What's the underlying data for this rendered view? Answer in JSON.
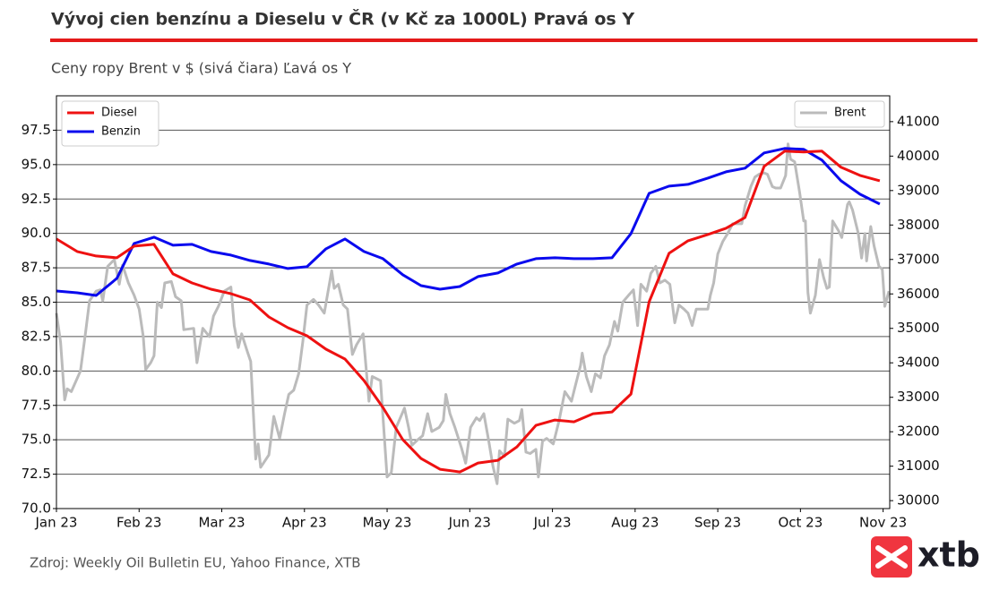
{
  "chart_data": {
    "type": "line",
    "title": "Vývoj cien benzínu a Dieselu v ČR (v Kč za 1000L) Pravá os Y",
    "subtitle": "Ceny ropy Brent v $ (sivá čiara) Ľavá os Y",
    "source": "Zdroj: Weekly Oil Bulletin EU, Yahoo Finance, XTB",
    "logo": "xtb",
    "xlim": [
      0,
      10.08
    ],
    "xticks": [
      {
        "value": 0,
        "label": "Jan 23"
      },
      {
        "value": 1,
        "label": "Feb 23"
      },
      {
        "value": 2,
        "label": "Mar 23"
      },
      {
        "value": 3,
        "label": "Apr 23"
      },
      {
        "value": 4,
        "label": "May 23"
      },
      {
        "value": 5,
        "label": "Jun 23"
      },
      {
        "value": 6,
        "label": "Jul 23"
      },
      {
        "value": 7,
        "label": "Aug 23"
      },
      {
        "value": 8,
        "label": "Sep 23"
      },
      {
        "value": 9,
        "label": "Oct 23"
      },
      {
        "value": 10,
        "label": "Nov 23"
      }
    ],
    "ylim": [
      70,
      100
    ],
    "yticks": [
      {
        "value": 70,
        "label": "70.0"
      },
      72.5,
      {
        "value": 75,
        "label": "75.0"
      },
      77.5,
      {
        "value": 80,
        "label": "80.0"
      },
      82.5,
      {
        "value": 85,
        "label": "85.0"
      },
      87.5,
      {
        "value": 90,
        "label": "90.0"
      },
      92.5,
      {
        "value": 95,
        "label": "95.0"
      },
      97.5
    ],
    "y2lim": [
      29770,
      41750
    ],
    "y2ticks": [
      30000,
      31000,
      32000,
      33000,
      34000,
      35000,
      36000,
      37000,
      38000,
      39000,
      40000,
      41000
    ],
    "grid": true,
    "legend": "upper left",
    "legend2": "upper right",
    "series": [
      {
        "name": "Diesel",
        "color": "#ee1111",
        "axis": "y2",
        "x": [
          0,
          0.25,
          0.48,
          0.73,
          0.94,
          1.18,
          1.41,
          1.64,
          1.87,
          2.11,
          2.34,
          2.57,
          2.8,
          3.03,
          3.26,
          3.49,
          3.72,
          3.95,
          4.19,
          4.41,
          4.64,
          4.88,
          5.1,
          5.34,
          5.57,
          5.8,
          6.03,
          6.26,
          6.49,
          6.72,
          6.95,
          7.17,
          7.41,
          7.64,
          7.88,
          8.1,
          8.33,
          8.56,
          8.81,
          9.04,
          9.26,
          9.49,
          9.72,
          9.96
        ],
        "values": [
          37594,
          37230,
          37100,
          37048,
          37386,
          37438,
          36580,
          36320,
          36138,
          36008,
          35826,
          35332,
          35020,
          34786,
          34395,
          34109,
          33485,
          32705,
          31768,
          31222,
          30910,
          30832,
          31092,
          31170,
          31560,
          32185,
          32341,
          32289,
          32523,
          32575,
          33095,
          35774,
          37178,
          37542,
          37724,
          37906,
          38218,
          39701,
          40143,
          40117,
          40143,
          39675,
          39441,
          39285
        ]
      },
      {
        "name": "Benzin",
        "color": "#0a0aee",
        "axis": "y2",
        "x": [
          0,
          0.25,
          0.48,
          0.73,
          0.94,
          1.18,
          1.41,
          1.64,
          1.87,
          2.11,
          2.34,
          2.57,
          2.8,
          3.03,
          3.26,
          3.49,
          3.72,
          3.95,
          4.19,
          4.41,
          4.64,
          4.88,
          5.1,
          5.34,
          5.57,
          5.8,
          6.03,
          6.26,
          6.49,
          6.72,
          6.95,
          7.17,
          7.41,
          7.64,
          7.88,
          8.1,
          8.33,
          8.56,
          8.81,
          9.04,
          9.26,
          9.49,
          9.72,
          9.96
        ],
        "values": [
          36086,
          36034,
          35956,
          36450,
          37464,
          37646,
          37412,
          37438,
          37230,
          37126,
          36970,
          36866,
          36736,
          36788,
          37308,
          37594,
          37230,
          37022,
          36554,
          36242,
          36138,
          36216,
          36502,
          36606,
          36866,
          37022,
          37048,
          37022,
          37022,
          37048,
          37750,
          38921,
          39129,
          39181,
          39363,
          39545,
          39649,
          40091,
          40221,
          40195,
          39883,
          39285,
          38895,
          38609
        ]
      },
      {
        "name": "Brent",
        "color": "#bbbbbb",
        "x": [
          0,
          0.05,
          0.1,
          0.13,
          0.18,
          0.29,
          0.35,
          0.4,
          0.48,
          0.53,
          0.56,
          0.62,
          0.7,
          0.76,
          0.8,
          0.87,
          0.94,
          1.0,
          1.05,
          1.08,
          1.14,
          1.18,
          1.22,
          1.27,
          1.31,
          1.39,
          1.44,
          1.51,
          1.54,
          1.66,
          1.7,
          1.77,
          1.85,
          1.9,
          1.96,
          2.03,
          2.11,
          2.15,
          2.2,
          2.24,
          2.31,
          2.35,
          2.41,
          2.44,
          2.47,
          2.57,
          2.63,
          2.7,
          2.76,
          2.81,
          2.87,
          2.93,
          2.98,
          3.03,
          3.11,
          3.17,
          3.24,
          3.33,
          3.36,
          3.41,
          3.47,
          3.52,
          3.58,
          3.63,
          3.71,
          3.78,
          3.82,
          3.92,
          4.0,
          4.05,
          4.11,
          4.16,
          4.21,
          4.26,
          4.3,
          4.37,
          4.43,
          4.49,
          4.54,
          4.63,
          4.68,
          4.71,
          4.76,
          4.82,
          4.9,
          4.95,
          5.01,
          5.08,
          5.12,
          5.17,
          5.23,
          5.28,
          5.33,
          5.36,
          5.42,
          5.46,
          5.54,
          5.6,
          5.63,
          5.68,
          5.73,
          5.8,
          5.83,
          5.88,
          5.93,
          6.01,
          6.08,
          6.15,
          6.23,
          6.28,
          6.34,
          6.36,
          6.41,
          6.47,
          6.52,
          6.58,
          6.63,
          6.69,
          6.75,
          6.79,
          6.85,
          6.92,
          6.98,
          7.03,
          7.07,
          7.14,
          7.19,
          7.25,
          7.3,
          7.36,
          7.42,
          7.48,
          7.53,
          7.59,
          7.64,
          7.69,
          7.74,
          7.81,
          7.88,
          7.91,
          7.95,
          8.0,
          8.06,
          8.12,
          8.18,
          8.22,
          8.29,
          8.33,
          8.4,
          8.45,
          8.5,
          8.56,
          8.6,
          8.66,
          8.7,
          8.76,
          8.82,
          8.85,
          8.88,
          8.93,
          8.99,
          9.04,
          9.06,
          9.09,
          9.12,
          9.18,
          9.23,
          9.28,
          9.32,
          9.35,
          9.39,
          9.46,
          9.5,
          9.52,
          9.57,
          9.59,
          9.63,
          9.7,
          9.74,
          9.78,
          9.8,
          9.85,
          9.89,
          9.95,
          9.99,
          10.02,
          10.07
        ],
        "values": [
          84.2,
          82.1,
          77.9,
          78.7,
          78.5,
          80.0,
          82.7,
          85.1,
          85.8,
          85.9,
          85.1,
          87.6,
          88.1,
          86.3,
          87.7,
          86.4,
          85.5,
          84.5,
          82.5,
          80.1,
          80.6,
          81.1,
          85.0,
          84.6,
          86.4,
          86.5,
          85.4,
          85.1,
          83.0,
          83.1,
          80.6,
          83.1,
          82.5,
          84.0,
          84.7,
          85.8,
          86.1,
          83.3,
          81.7,
          82.7,
          81.4,
          80.7,
          73.6,
          74.7,
          73.0,
          73.9,
          76.7,
          75.1,
          76.9,
          78.3,
          78.6,
          79.8,
          82.1,
          84.8,
          85.2,
          84.8,
          84.2,
          87.3,
          86.0,
          86.3,
          84.8,
          84.5,
          81.2,
          81.9,
          82.7,
          77.8,
          79.6,
          79.3,
          72.3,
          72.6,
          75.9,
          76.6,
          77.3,
          75.9,
          74.6,
          75.0,
          75.3,
          76.9,
          75.6,
          75.9,
          76.4,
          78.3,
          76.9,
          75.9,
          74.4,
          73.3,
          75.9,
          76.6,
          76.4,
          76.9,
          74.9,
          73.1,
          71.8,
          74.2,
          73.8,
          76.5,
          76.2,
          76.4,
          77.2,
          74.1,
          74.0,
          74.3,
          72.3,
          74.9,
          75.1,
          74.7,
          76.4,
          78.5,
          77.8,
          79.0,
          80.4,
          81.3,
          79.6,
          78.5,
          79.8,
          79.5,
          81.1,
          81.9,
          83.6,
          82.9,
          85.0,
          85.5,
          85.9,
          83.3,
          86.3,
          85.8,
          87.1,
          87.6,
          86.4,
          86.6,
          86.3,
          83.5,
          84.8,
          84.5,
          84.2,
          83.3,
          84.5,
          84.5,
          84.5,
          85.5,
          86.4,
          88.5,
          89.4,
          90.0,
          90.7,
          90.7,
          90.7,
          92.0,
          93.4,
          94.1,
          94.3,
          94.4,
          94.3,
          93.4,
          93.3,
          93.3,
          94.2,
          96.5,
          95.4,
          95.2,
          93.0,
          90.9,
          90.9,
          85.7,
          84.2,
          85.5,
          88.1,
          86.8,
          86.0,
          86.1,
          90.9,
          90.2,
          89.7,
          90.4,
          92.1,
          92.3,
          91.7,
          90.0,
          88.2,
          90.0,
          88.0,
          90.5,
          89.1,
          87.6,
          87.4,
          84.7,
          85.8
        ]
      }
    ]
  }
}
